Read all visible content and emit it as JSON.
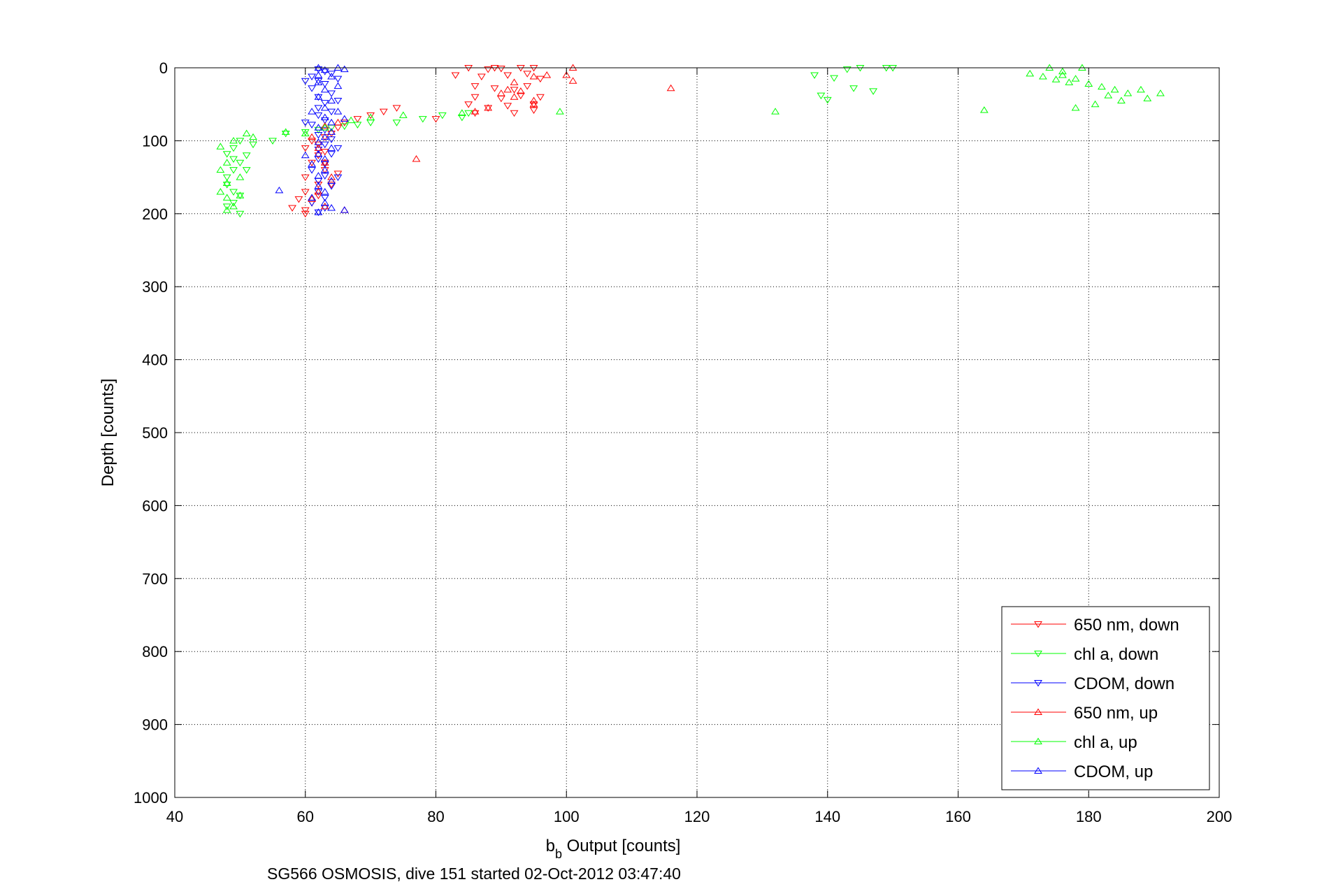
{
  "chart_data": {
    "type": "scatter",
    "xlabel_main": "b",
    "xlabel_sub": "b",
    "xlabel_rest": " Output [counts]",
    "ylabel": "Depth [counts]",
    "caption": "SG566 OSMOSIS, dive 151 started 02-Oct-2012 03:47:40",
    "xlim": [
      40,
      200
    ],
    "ylim": [
      0,
      1000
    ],
    "y_reversed": true,
    "grid": true,
    "legend_placement": "bottom-right",
    "x_ticks": [
      "40",
      "60",
      "80",
      "100",
      "120",
      "140",
      "160",
      "180",
      "200"
    ],
    "y_ticks": [
      "0",
      "100",
      "200",
      "300",
      "400",
      "500",
      "600",
      "700",
      "800",
      "900",
      "1000"
    ],
    "series": [
      {
        "name": "650 nm, down",
        "color": "#ff0000",
        "marker": "triangle-down",
        "points": [
          [
            85,
            0
          ],
          [
            88,
            2
          ],
          [
            89,
            0
          ],
          [
            90,
            1
          ],
          [
            93,
            0
          ],
          [
            95,
            0
          ],
          [
            83,
            10
          ],
          [
            87,
            12
          ],
          [
            91,
            10
          ],
          [
            94,
            8
          ],
          [
            96,
            15
          ],
          [
            86,
            25
          ],
          [
            89,
            28
          ],
          [
            92,
            30
          ],
          [
            94,
            25
          ],
          [
            86,
            40
          ],
          [
            90,
            42
          ],
          [
            93,
            38
          ],
          [
            96,
            40
          ],
          [
            85,
            50
          ],
          [
            88,
            55
          ],
          [
            91,
            52
          ],
          [
            95,
            50
          ],
          [
            95,
            58
          ],
          [
            86,
            62
          ],
          [
            92,
            62
          ],
          [
            80,
            70
          ],
          [
            74,
            55
          ],
          [
            72,
            60
          ],
          [
            70,
            65
          ],
          [
            68,
            70
          ],
          [
            66,
            75
          ],
          [
            65,
            82
          ],
          [
            64,
            90
          ],
          [
            63,
            95
          ],
          [
            61,
            100
          ],
          [
            60,
            110
          ],
          [
            63,
            115
          ],
          [
            62,
            120
          ],
          [
            61,
            130
          ],
          [
            63,
            140
          ],
          [
            60,
            150
          ],
          [
            62,
            160
          ],
          [
            60,
            170
          ],
          [
            59,
            180
          ],
          [
            61,
            185
          ],
          [
            58,
            192
          ],
          [
            60,
            195
          ],
          [
            60,
            200
          ],
          [
            62,
            175
          ],
          [
            64,
            160
          ],
          [
            65,
            145
          ],
          [
            63,
            130
          ],
          [
            62,
            105
          ]
        ]
      },
      {
        "name": "chl a, down",
        "color": "#00ff00",
        "marker": "triangle-down",
        "points": [
          [
            138,
            10
          ],
          [
            141,
            14
          ],
          [
            143,
            2
          ],
          [
            145,
            0
          ],
          [
            149,
            0
          ],
          [
            150,
            0
          ],
          [
            144,
            28
          ],
          [
            147,
            32
          ],
          [
            139,
            38
          ],
          [
            140,
            44
          ],
          [
            85,
            62
          ],
          [
            84,
            68
          ],
          [
            81,
            65
          ],
          [
            78,
            70
          ],
          [
            74,
            75
          ],
          [
            70,
            75
          ],
          [
            68,
            78
          ],
          [
            66,
            80
          ],
          [
            64,
            82
          ],
          [
            62,
            85
          ],
          [
            60,
            88
          ],
          [
            57,
            90
          ],
          [
            55,
            100
          ],
          [
            52,
            105
          ],
          [
            50,
            100
          ],
          [
            49,
            110
          ],
          [
            48,
            118
          ],
          [
            49,
            125
          ],
          [
            50,
            130
          ],
          [
            49,
            140
          ],
          [
            48,
            150
          ],
          [
            48,
            160
          ],
          [
            49,
            170
          ],
          [
            50,
            175
          ],
          [
            49,
            185
          ],
          [
            48,
            190
          ],
          [
            50,
            200
          ],
          [
            51,
            140
          ],
          [
            51,
            120
          ]
        ]
      },
      {
        "name": "CDOM, down",
        "color": "#0000ff",
        "marker": "triangle-down",
        "points": [
          [
            62,
            2
          ],
          [
            63,
            5
          ],
          [
            64,
            8
          ],
          [
            61,
            12
          ],
          [
            62,
            18
          ],
          [
            63,
            22
          ],
          [
            61,
            28
          ],
          [
            64,
            35
          ],
          [
            62,
            40
          ],
          [
            63,
            48
          ],
          [
            62,
            55
          ],
          [
            64,
            60
          ],
          [
            62,
            65
          ],
          [
            63,
            72
          ],
          [
            61,
            78
          ],
          [
            63,
            85
          ],
          [
            62,
            92
          ],
          [
            64,
            98
          ],
          [
            63,
            105
          ],
          [
            62,
            112
          ],
          [
            64,
            118
          ],
          [
            62,
            125
          ],
          [
            63,
            132
          ],
          [
            61,
            140
          ],
          [
            63,
            148
          ],
          [
            62,
            155
          ],
          [
            64,
            162
          ],
          [
            62,
            170
          ],
          [
            63,
            178
          ],
          [
            61,
            185
          ],
          [
            63,
            192
          ],
          [
            62,
            198
          ],
          [
            65,
            15
          ],
          [
            60,
            18
          ],
          [
            65,
            45
          ],
          [
            60,
            75
          ],
          [
            65,
            110
          ],
          [
            65,
            150
          ]
        ]
      },
      {
        "name": "650 nm, up",
        "color": "#ff0000",
        "marker": "triangle-up",
        "points": [
          [
            101,
            0
          ],
          [
            100,
            10
          ],
          [
            101,
            18
          ],
          [
            97,
            10
          ],
          [
            95,
            12
          ],
          [
            92,
            20
          ],
          [
            91,
            30
          ],
          [
            90,
            35
          ],
          [
            92,
            40
          ],
          [
            95,
            45
          ],
          [
            95,
            50
          ],
          [
            86,
            60
          ],
          [
            88,
            55
          ],
          [
            93,
            32
          ],
          [
            116,
            28
          ],
          [
            77,
            125
          ],
          [
            66,
            195
          ],
          [
            63,
            190
          ],
          [
            61,
            180
          ],
          [
            62,
            170
          ],
          [
            64,
            150
          ],
          [
            63,
            130
          ],
          [
            62,
            110
          ],
          [
            61,
            95
          ],
          [
            63,
            80
          ],
          [
            65,
            75
          ]
        ]
      },
      {
        "name": "chl a, up",
        "color": "#00ff00",
        "marker": "triangle-up",
        "points": [
          [
            174,
            0
          ],
          [
            176,
            5
          ],
          [
            179,
            0
          ],
          [
            171,
            8
          ],
          [
            173,
            12
          ],
          [
            175,
            16
          ],
          [
            176,
            10
          ],
          [
            177,
            20
          ],
          [
            178,
            15
          ],
          [
            180,
            22
          ],
          [
            182,
            26
          ],
          [
            184,
            30
          ],
          [
            186,
            35
          ],
          [
            188,
            30
          ],
          [
            191,
            35
          ],
          [
            189,
            42
          ],
          [
            185,
            45
          ],
          [
            183,
            38
          ],
          [
            181,
            50
          ],
          [
            178,
            55
          ],
          [
            164,
            58
          ],
          [
            132,
            60
          ],
          [
            99,
            60
          ],
          [
            84,
            62
          ],
          [
            75,
            65
          ],
          [
            70,
            68
          ],
          [
            67,
            72
          ],
          [
            63,
            82
          ],
          [
            60,
            90
          ],
          [
            57,
            88
          ],
          [
            52,
            95
          ],
          [
            51,
            90
          ],
          [
            49,
            100
          ],
          [
            47,
            108
          ],
          [
            48,
            130
          ],
          [
            47,
            140
          ],
          [
            48,
            158
          ],
          [
            47,
            170
          ],
          [
            48,
            178
          ],
          [
            49,
            190
          ],
          [
            48,
            195
          ],
          [
            50,
            150
          ],
          [
            50,
            175
          ]
        ]
      },
      {
        "name": "CDOM, up",
        "color": "#0000ff",
        "marker": "triangle-up",
        "points": [
          [
            62,
            0
          ],
          [
            63,
            3
          ],
          [
            65,
            0
          ],
          [
            66,
            2
          ],
          [
            62,
            10
          ],
          [
            64,
            12
          ],
          [
            62,
            20
          ],
          [
            65,
            25
          ],
          [
            63,
            30
          ],
          [
            62,
            40
          ],
          [
            64,
            45
          ],
          [
            63,
            55
          ],
          [
            65,
            60
          ],
          [
            63,
            68
          ],
          [
            64,
            75
          ],
          [
            62,
            82
          ],
          [
            64,
            88
          ],
          [
            63,
            95
          ],
          [
            62,
            102
          ],
          [
            64,
            110
          ],
          [
            62,
            118
          ],
          [
            63,
            125
          ],
          [
            61,
            132
          ],
          [
            63,
            140
          ],
          [
            62,
            148
          ],
          [
            64,
            155
          ],
          [
            62,
            162
          ],
          [
            63,
            170
          ],
          [
            61,
            178
          ],
          [
            63,
            185
          ],
          [
            64,
            192
          ],
          [
            62,
            198
          ],
          [
            56,
            168
          ],
          [
            66,
            195
          ],
          [
            60,
            120
          ],
          [
            61,
            60
          ],
          [
            66,
            70
          ]
        ]
      }
    ]
  }
}
